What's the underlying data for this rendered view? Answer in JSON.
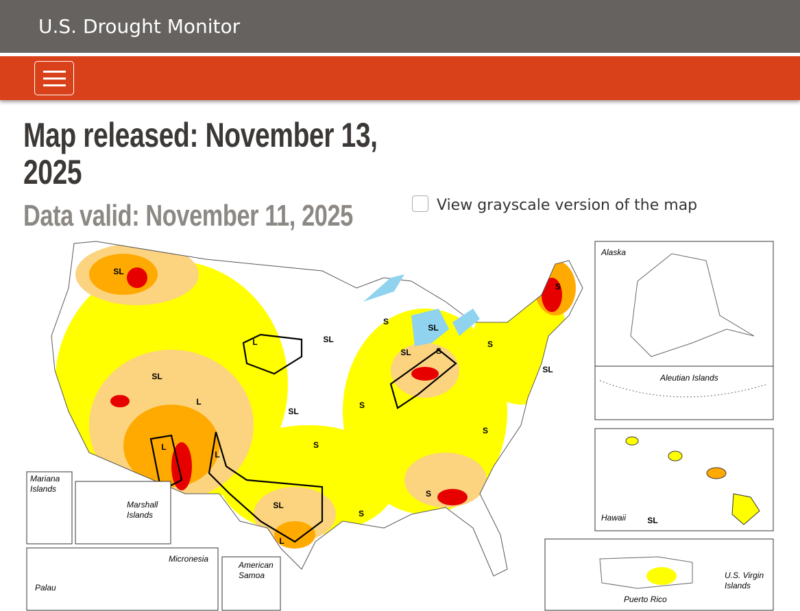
{
  "header": {
    "site_title": "U.S. Drought Monitor"
  },
  "page": {
    "map_released": "Map released: November 13, 2025",
    "data_valid": "Data valid: November 11, 2025",
    "grayscale_option": "View grayscale version of the map"
  },
  "map": {
    "impact_labels": [
      "SL",
      "SL",
      "L",
      "L",
      "L",
      "SL",
      "L",
      "SL",
      "SL",
      "S",
      "SL",
      "S",
      "SL",
      "S",
      "SL",
      "S",
      "S",
      "S",
      "S",
      "S",
      "S",
      "L",
      "SL"
    ],
    "insets": [
      "Alaska",
      "Aleutian Islands",
      "Hawaii",
      "Puerto Rico",
      "U.S. Virgin Islands",
      "Mariana Islands",
      "Marshall Islands",
      "Micronesia",
      "Palau",
      "American Samoa"
    ]
  }
}
